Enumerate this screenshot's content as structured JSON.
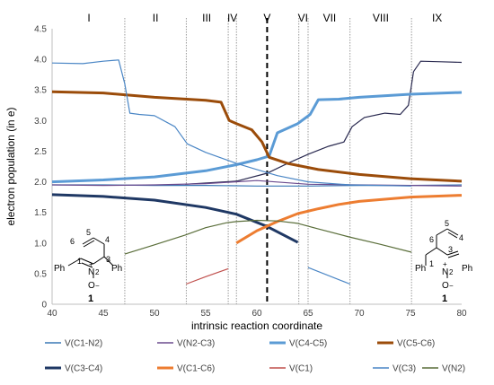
{
  "chart_data": {
    "type": "line",
    "xlabel": "intrinsic reaction coordinate",
    "ylabel": "electron population (in e)",
    "xlim": [
      40,
      80
    ],
    "ylim": [
      0,
      4.5
    ],
    "xticks": [
      40,
      45,
      50,
      55,
      60,
      65,
      70,
      75,
      80
    ],
    "xtick_labels": [
      "40",
      "45",
      "50",
      "55",
      "60",
      "65",
      "70",
      "75",
      "80"
    ],
    "yticks": [
      0,
      0.5,
      1,
      1.5,
      2,
      2.5,
      3,
      3.5,
      4,
      4.5
    ],
    "ytick_labels": [
      "0",
      "0.5",
      "1.0",
      "1.5",
      "2.0",
      "2.5",
      "3.0",
      "3.5",
      "4.0",
      "4.5"
    ],
    "grid": false,
    "legend_position": "bottom",
    "phase_boundaries": [
      47.1,
      53.1,
      57.2,
      58.0,
      64.1,
      65.0,
      69.1,
      75.1
    ],
    "transition_state_x": 61.0,
    "phases": [
      {
        "label": "I",
        "x": 43.6
      },
      {
        "label": "II",
        "x": 50.1
      },
      {
        "label": "III",
        "x": 55.1
      },
      {
        "label": "IV",
        "x": 57.6
      },
      {
        "label": "V",
        "x": 61.0
      },
      {
        "label": "VI",
        "x": 64.5
      },
      {
        "label": "VII",
        "x": 67.1
      },
      {
        "label": "VIII",
        "x": 72.1
      },
      {
        "label": "IX",
        "x": 77.6
      }
    ],
    "series": [
      {
        "name": "V(C1-N2)",
        "color": "#3a78b5",
        "width": 1.2,
        "x": [
          40,
          45,
          50,
          55,
          60,
          65,
          70,
          75,
          80
        ],
        "y": [
          1.95,
          1.95,
          1.94,
          1.94,
          1.93,
          1.93,
          1.94,
          1.94,
          1.95
        ]
      },
      {
        "name": "V(N2-C3)",
        "color": "#6b4b8e",
        "width": 1.2,
        "x": [
          40,
          45,
          50,
          55,
          60,
          65,
          70,
          75,
          80
        ],
        "y": [
          1.95,
          1.94,
          1.95,
          1.97,
          2.02,
          1.96,
          1.95,
          1.94,
          1.93
        ]
      },
      {
        "name": "V(C4-C5)",
        "color": "#5b9bd5",
        "width": 3,
        "x": [
          40,
          45,
          50,
          55,
          58,
          60,
          61.2,
          62,
          64,
          65.2,
          66,
          68,
          70,
          75,
          80
        ],
        "y": [
          2.0,
          2.03,
          2.08,
          2.18,
          2.28,
          2.36,
          2.42,
          2.8,
          2.95,
          3.1,
          3.34,
          3.35,
          3.38,
          3.43,
          3.46
        ]
      },
      {
        "name": "V(C5-C6)",
        "color": "#9b4c0a",
        "width": 3,
        "x": [
          40,
          45,
          50,
          55,
          56.5,
          57.3,
          58,
          59.5,
          60.5,
          61.2,
          63,
          66,
          70,
          75,
          80
        ],
        "y": [
          3.47,
          3.45,
          3.38,
          3.33,
          3.3,
          3.0,
          2.95,
          2.85,
          2.65,
          2.4,
          2.3,
          2.2,
          2.12,
          2.05,
          2.01
        ]
      },
      {
        "name": "V(C3-C4)",
        "color": "#1f3864",
        "width": 3,
        "x": [
          40,
          45,
          50,
          55,
          58,
          61,
          64
        ],
        "y": [
          1.79,
          1.76,
          1.7,
          1.58,
          1.47,
          1.27,
          1.01
        ]
      },
      {
        "name": "V(C1-C6)",
        "color": "#ed7d31",
        "width": 3,
        "x": [
          58,
          60,
          62,
          64,
          66,
          68,
          70,
          75,
          80
        ],
        "y": [
          1.0,
          1.2,
          1.35,
          1.48,
          1.56,
          1.63,
          1.68,
          1.75,
          1.78
        ]
      },
      {
        "name": "V(C1)",
        "color": "#c0504d",
        "width": 1.2,
        "x": [
          53.1,
          55,
          57.2
        ],
        "y": [
          0.33,
          0.45,
          0.58
        ]
      },
      {
        "name": "V(C3)",
        "color": "#4a86c5",
        "width": 1.2,
        "x": [
          40,
          43,
          45,
          46.5,
          47.1,
          47.6,
          48.5,
          50,
          52,
          53.2,
          55,
          58,
          60,
          62,
          65,
          69.1,
          75.1,
          75.5,
          76.5,
          80
        ],
        "y": [
          3.94,
          3.93,
          3.97,
          3.99,
          3.6,
          3.12,
          3.1,
          3.08,
          2.9,
          2.62,
          2.48,
          2.3,
          2.2,
          2.1,
          2.0,
          1.95,
          1.93,
          null,
          null,
          null
        ]
      },
      {
        "name": "V(N2)",
        "color": "#5a6e3a",
        "width": 1.2,
        "x": [
          47.1,
          50,
          53,
          55,
          57,
          58,
          60,
          62,
          64,
          66,
          69,
          72,
          75.1
        ],
        "y": [
          0.82,
          0.97,
          1.13,
          1.25,
          1.33,
          1.35,
          1.37,
          1.36,
          1.32,
          1.23,
          1.1,
          0.98,
          0.85
        ]
      }
    ],
    "extra_segments": [
      {
        "color": "#2a2a50",
        "width": 1.2,
        "x": [
          40,
          45,
          50,
          55,
          58,
          61,
          63,
          65,
          67,
          68.5,
          69.5,
          71,
          73,
          74.5,
          75.2,
          75.8,
          76.5,
          78,
          80
        ],
        "y": [
          null,
          null,
          null,
          null,
          null,
          null,
          null,
          null,
          null,
          null,
          null,
          null,
          null,
          null,
          null,
          null,
          null,
          null,
          null
        ]
      }
    ]
  }
}
